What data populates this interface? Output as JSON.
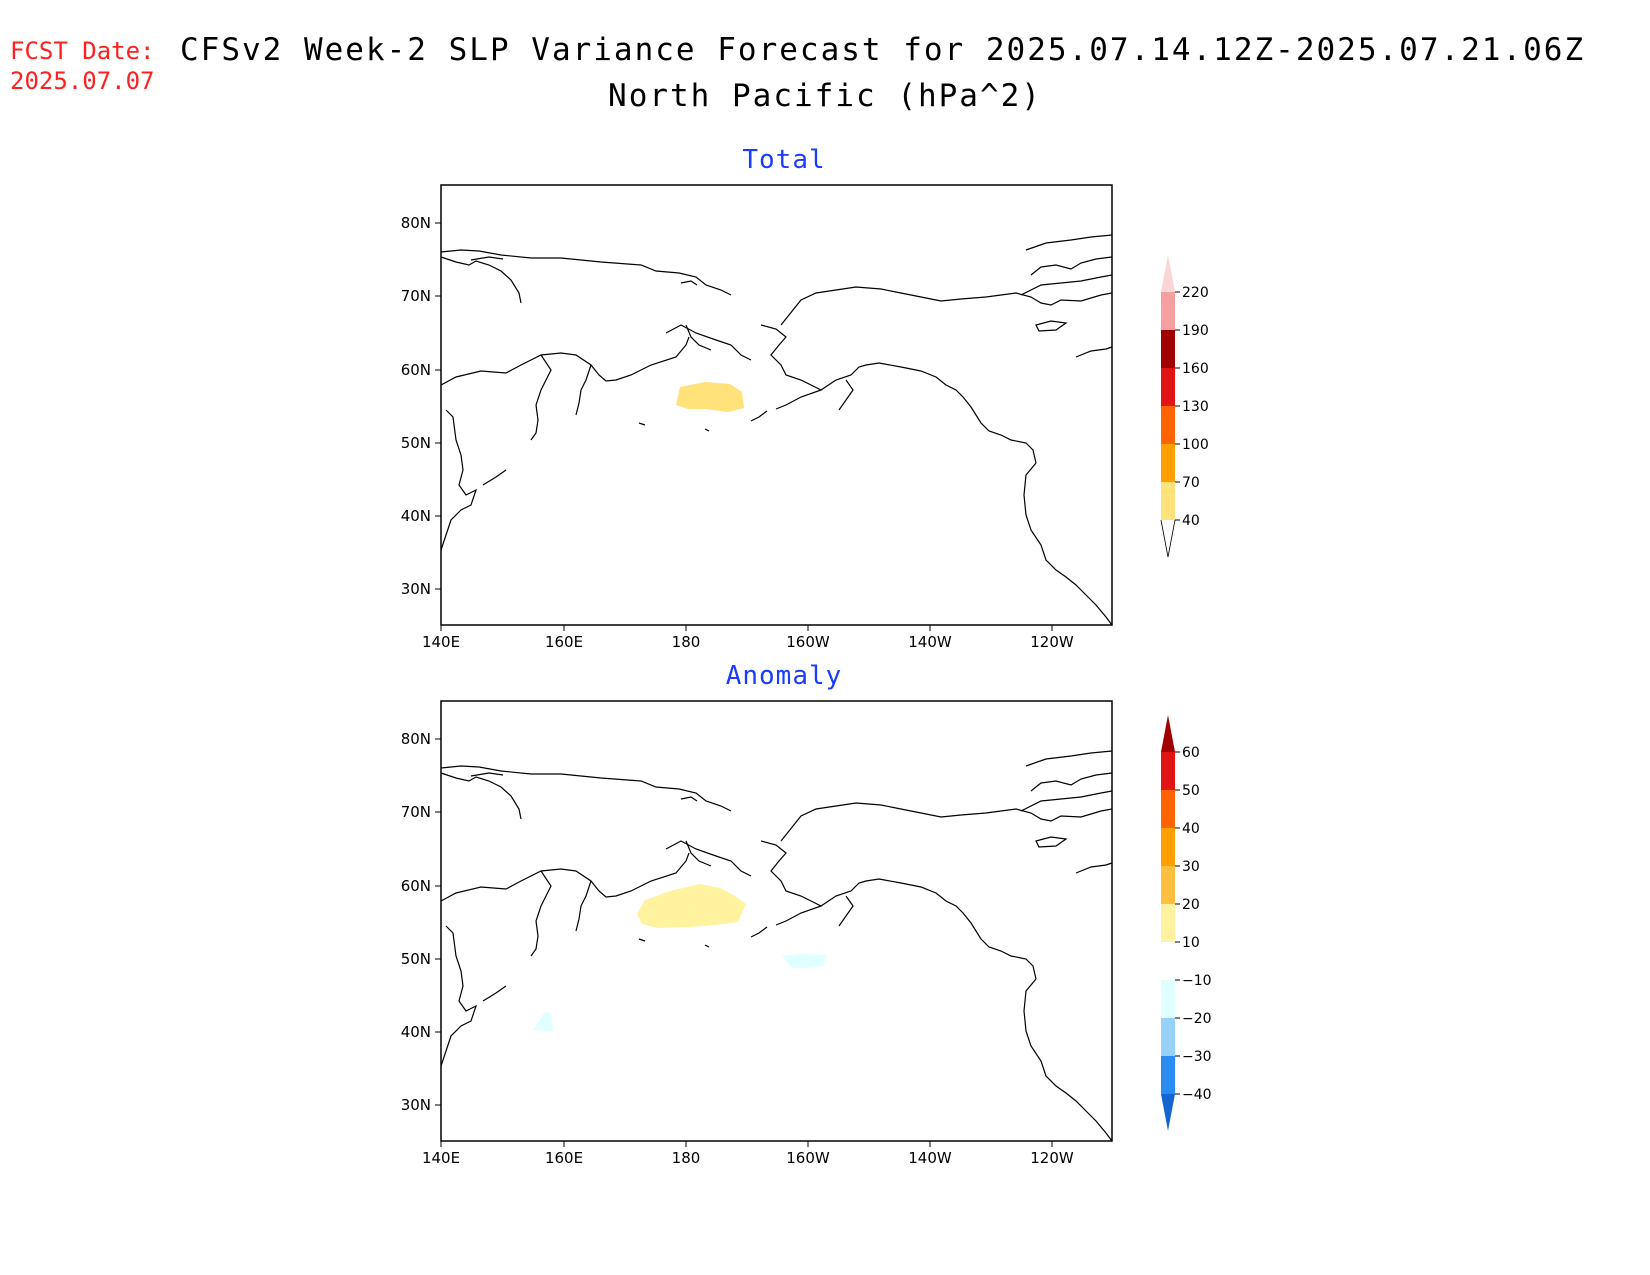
{
  "header": {
    "fcst_label": "FCST Date:",
    "fcst_date": "2025.07.07",
    "title": "CFSv2 Week-2 SLP Variance Forecast for 2025.07.14.12Z-2025.07.21.06Z",
    "subtitle": "North Pacific (hPa^2)"
  },
  "panels": [
    {
      "title": "Total",
      "lat_ticks": [
        "80N",
        "70N",
        "60N",
        "50N",
        "40N",
        "30N"
      ],
      "lon_ticks": [
        "140E",
        "160E",
        "180",
        "160W",
        "140W",
        "120W"
      ],
      "colorbar_labels": [
        "220",
        "190",
        "160",
        "130",
        "100",
        "70",
        "40"
      ],
      "colorbar_colors": [
        "#fbd6d6",
        "#f4a0a0",
        "#a00000",
        "#e01414",
        "#ff6400",
        "#ffa000",
        "#ffe27a"
      ]
    },
    {
      "title": "Anomaly",
      "lat_ticks": [
        "80N",
        "70N",
        "60N",
        "50N",
        "40N",
        "30N"
      ],
      "lon_ticks": [
        "140E",
        "160E",
        "180",
        "160W",
        "140W",
        "120W"
      ],
      "colorbar_labels": [
        "60",
        "50",
        "40",
        "30",
        "20",
        "10",
        "−10",
        "−20",
        "−30",
        "−40"
      ],
      "colorbar_colors": [
        "#a00000",
        "#e01414",
        "#ff6400",
        "#ffa000",
        "#ffc040",
        "#fff3a0",
        "#ffffff",
        "#e0ffff",
        "#96d2fa",
        "#2a8cf0",
        "#1464d2"
      ]
    }
  ],
  "colors": {
    "title_blue": "#1a3cff",
    "fcst_red": "#ff2020"
  }
}
